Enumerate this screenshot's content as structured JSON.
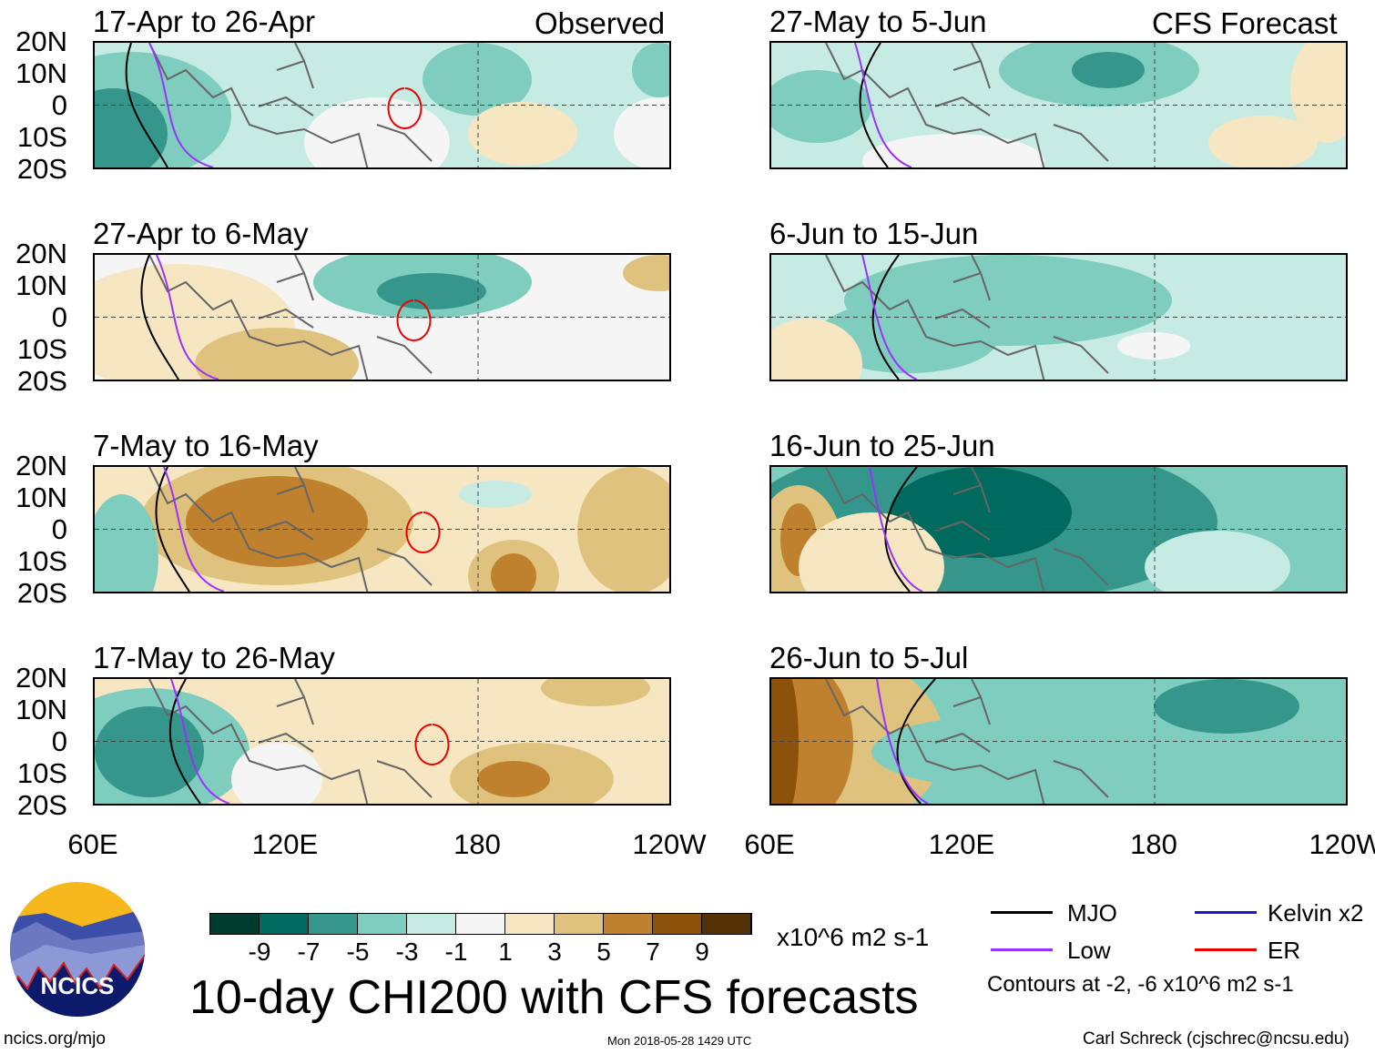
{
  "header": {
    "observed_label": "Observed",
    "forecast_label": "CFS Forecast"
  },
  "panels": [
    {
      "title": "17-Apr to 26-Apr",
      "group": "observed",
      "base_level": 4
    },
    {
      "title": "27-Apr to 6-May",
      "group": "observed",
      "base_level": 5
    },
    {
      "title": "7-May to 16-May",
      "group": "observed",
      "base_level": 6
    },
    {
      "title": "17-May to 26-May",
      "group": "observed",
      "base_level": 6
    },
    {
      "title": "27-May to 5-Jun",
      "group": "forecast",
      "base_level": 4
    },
    {
      "title": "6-Jun to 15-Jun",
      "group": "forecast",
      "base_level": 4
    },
    {
      "title": "16-Jun to 25-Jun",
      "group": "forecast",
      "base_level": 3
    },
    {
      "title": "26-Jun to 5-Jul",
      "group": "forecast",
      "base_level": 3
    }
  ],
  "axes": {
    "lat_labels": [
      "20N",
      "10N",
      "0",
      "10S",
      "20S"
    ],
    "lon_labels": [
      "60E",
      "120E",
      "180",
      "120W"
    ]
  },
  "colorbar": {
    "colors": [
      "#003b2f",
      "#006a5e",
      "#35968b",
      "#7fcdbf",
      "#c6ebe3",
      "#f5f5f5",
      "#f6e6c2",
      "#dfc27d",
      "#bf812d",
      "#8c510a",
      "#543005"
    ],
    "tick_labels": [
      "-9",
      "-7",
      "-5",
      "-3",
      "-1",
      "1",
      "3",
      "5",
      "7",
      "9"
    ],
    "units": "x10^6 m2 s-1"
  },
  "title": "10-day CHI200 with CFS forecasts",
  "legend": {
    "items": [
      {
        "label": "MJO",
        "color": "#000000"
      },
      {
        "label": "Kelvin x2",
        "color": "#1a1acc"
      },
      {
        "label": "Low",
        "color": "#9b30ff"
      },
      {
        "label": "ER",
        "color": "#ee0000"
      }
    ],
    "contours_note": "Contours at -2, -6 x10^6 m2 s-1"
  },
  "logo": {
    "text": "NCICS"
  },
  "footer": {
    "url": "ncics.org/mjo",
    "timestamp": "Mon 2018-05-28 1429 UTC",
    "author": "Carl Schreck (cjschrec@ncsu.edu)"
  }
}
